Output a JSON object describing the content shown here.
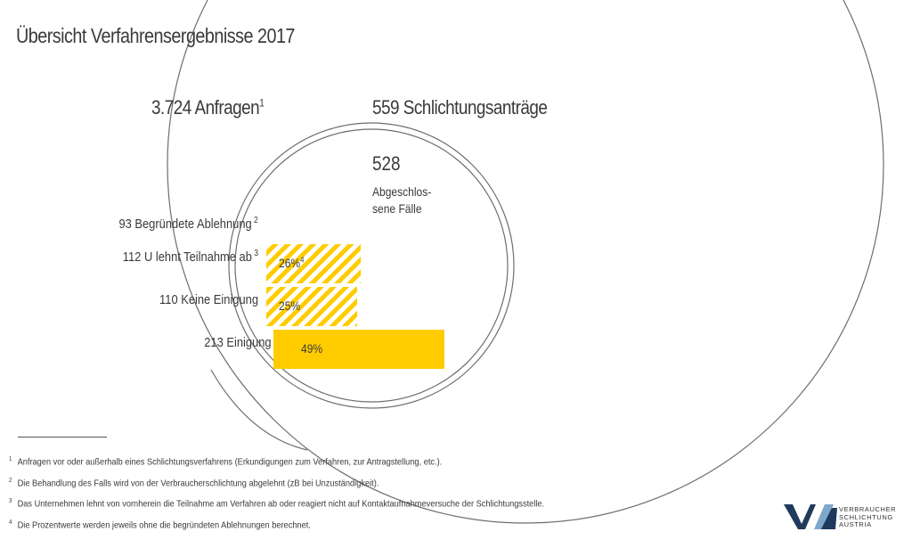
{
  "title": "Übersicht Verfahrensergebnisse 2017",
  "anfragen": {
    "label": "3.724 Anfragen",
    "mark": "1"
  },
  "antraege": {
    "label": "559 Schlichtungsanträge"
  },
  "closed": {
    "number": "528",
    "caption": "Abgeschlos-\nsene Fälle"
  },
  "chart_data": {
    "type": "bar",
    "orientation": "horizontal",
    "title": "Übersicht Verfahrensergebnisse 2017",
    "categories": [
      "Begründete Ablehnung",
      "U lehnt Teilnahme ab",
      "Keine Einigung",
      "Einigung"
    ],
    "counts": [
      93,
      112,
      110,
      213
    ],
    "percent_values": [
      null,
      26,
      25,
      49
    ],
    "percent_labels": [
      "",
      "26%",
      "25%",
      "49%"
    ],
    "footnote_marks": [
      "2",
      "3",
      "",
      ""
    ],
    "percent_marks": [
      "",
      "4",
      "",
      ""
    ],
    "totals": {
      "anfragen": 3724,
      "schlichtungsantraege": 559,
      "abgeschlossene_faelle": 528
    },
    "bar_styles": [
      "none",
      "hatched",
      "hatched",
      "solid"
    ],
    "colors": {
      "bar": "#ffcc00",
      "hatch_bg": "#ffffff",
      "text": "#3a3a3a",
      "circle": "#6e6e6e"
    }
  },
  "footnotes": [
    {
      "mark": "1",
      "text": "Anfragen vor oder außerhalb eines Schlichtungsverfahrens (Erkundigungen zum Verfahren, zur Antragstellung, etc.)."
    },
    {
      "mark": "2",
      "text": "Die Behandlung des Falls wird von der Verbraucherschlichtung abgelehnt (zB bei Unzuständigkeit)."
    },
    {
      "mark": "3",
      "text": "Das Unternehmen lehnt von vornherein die Teilnahme am Verfahren ab oder reagiert nicht auf Kontaktaufnahmeversuche der Schlichtungsstelle."
    },
    {
      "mark": "4",
      "text": "Die Prozentwerte werden jeweils ohne die begründeten Ablehnungen berechnet."
    }
  ],
  "logo": {
    "text": "VERBRAUCHER\nSCHLICHTUNG\nAUSTRIA",
    "colors": {
      "dark": "#1f3a5c",
      "light": "#7fa7c9"
    }
  }
}
